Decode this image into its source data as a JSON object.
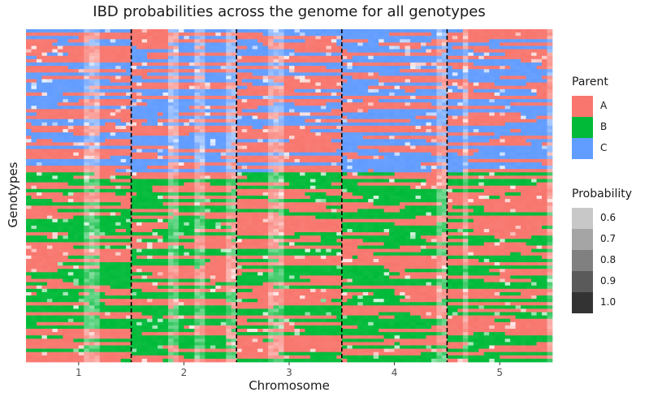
{
  "chart_data": {
    "type": "heatmap",
    "title": "IBD probabilities across the genome for all genotypes",
    "xlabel": "Chromosome",
    "ylabel": "Genotypes",
    "x_ticks": [
      "1",
      "2",
      "3",
      "4",
      "5"
    ],
    "chromosome_boundaries": [
      1.5,
      2.5,
      3.5,
      4.5
    ],
    "chromosome_bins": 20,
    "genotypes": {
      "total": 100,
      "upper_block": 43,
      "lower_block": 57
    },
    "upper_block_parents": [
      "A",
      "C"
    ],
    "lower_block_parents": [
      "A",
      "B"
    ],
    "legend_parent": {
      "title": "Parent",
      "items": [
        {
          "label": "A",
          "color": "#F8766D"
        },
        {
          "label": "B",
          "color": "#00BA38"
        },
        {
          "label": "C",
          "color": "#619CFF"
        }
      ]
    },
    "legend_probability": {
      "title": "Probability",
      "items": [
        {
          "label": "0.6",
          "value": 0.6,
          "color": "#C8C8C8"
        },
        {
          "label": "0.7",
          "value": 0.7,
          "color": "#A5A5A5"
        },
        {
          "label": "0.8",
          "value": 0.8,
          "color": "#808080"
        },
        {
          "label": "0.9",
          "value": 0.9,
          "color": "#5A5A5A"
        },
        {
          "label": "1.0",
          "value": 1.0,
          "color": "#333333"
        }
      ]
    },
    "panel_background": "#333333",
    "boundary_line_color": "#000000",
    "seed": 7
  }
}
